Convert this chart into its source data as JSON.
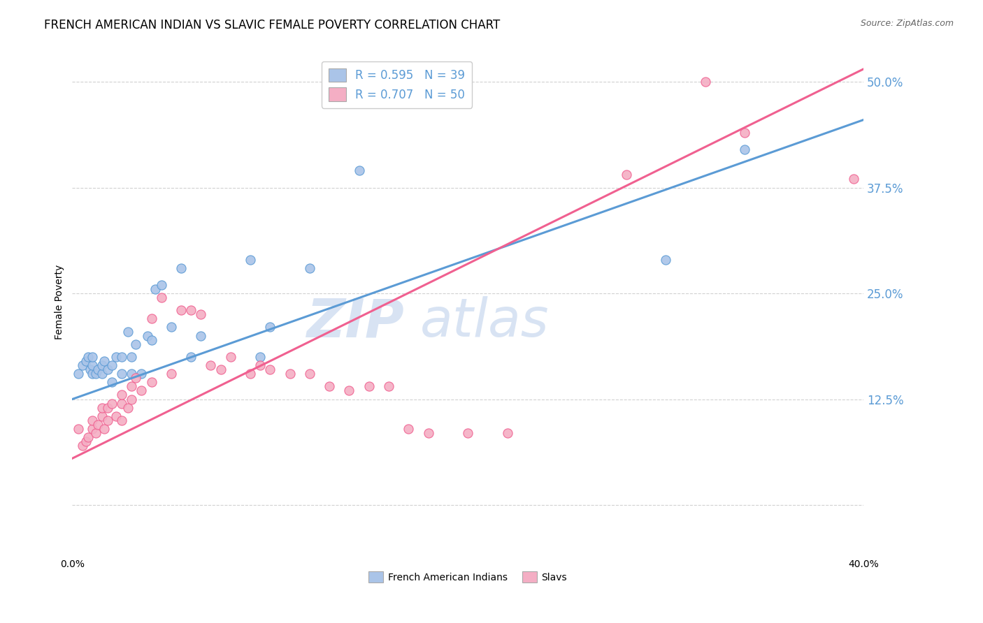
{
  "title": "FRENCH AMERICAN INDIAN VS SLAVIC FEMALE POVERTY CORRELATION CHART",
  "source": "Source: ZipAtlas.com",
  "ylabel": "Female Poverty",
  "yticks": [
    0.0,
    0.125,
    0.25,
    0.375,
    0.5
  ],
  "ytick_labels": [
    "",
    "12.5%",
    "25.0%",
    "37.5%",
    "50.0%"
  ],
  "xmin": 0.0,
  "xmax": 0.4,
  "ymin": -0.06,
  "ymax": 0.54,
  "legend_r1": "R = 0.595",
  "legend_n1": "N = 39",
  "legend_r2": "R = 0.707",
  "legend_n2": "N = 50",
  "label1": "French American Indians",
  "label2": "Slavs",
  "color1": "#aac4e8",
  "color2": "#f4aec4",
  "line_color1": "#5b9bd5",
  "line_color2": "#f06090",
  "watermark_zip": "ZIP",
  "watermark_atlas": "atlas",
  "blue_scatter_x": [
    0.003,
    0.005,
    0.007,
    0.008,
    0.009,
    0.01,
    0.01,
    0.01,
    0.012,
    0.013,
    0.015,
    0.015,
    0.016,
    0.018,
    0.02,
    0.02,
    0.022,
    0.025,
    0.025,
    0.028,
    0.03,
    0.03,
    0.032,
    0.035,
    0.038,
    0.04,
    0.042,
    0.045,
    0.05,
    0.055,
    0.06,
    0.065,
    0.09,
    0.095,
    0.1,
    0.12,
    0.145,
    0.3,
    0.34
  ],
  "blue_scatter_y": [
    0.155,
    0.165,
    0.17,
    0.175,
    0.16,
    0.155,
    0.165,
    0.175,
    0.155,
    0.16,
    0.155,
    0.165,
    0.17,
    0.16,
    0.145,
    0.165,
    0.175,
    0.155,
    0.175,
    0.205,
    0.155,
    0.175,
    0.19,
    0.155,
    0.2,
    0.195,
    0.255,
    0.26,
    0.21,
    0.28,
    0.175,
    0.2,
    0.29,
    0.175,
    0.21,
    0.28,
    0.395,
    0.29,
    0.42
  ],
  "pink_scatter_x": [
    0.003,
    0.005,
    0.007,
    0.008,
    0.01,
    0.01,
    0.012,
    0.013,
    0.015,
    0.015,
    0.016,
    0.018,
    0.018,
    0.02,
    0.022,
    0.025,
    0.025,
    0.025,
    0.028,
    0.03,
    0.03,
    0.032,
    0.035,
    0.04,
    0.04,
    0.045,
    0.05,
    0.055,
    0.06,
    0.065,
    0.07,
    0.075,
    0.08,
    0.09,
    0.095,
    0.1,
    0.11,
    0.12,
    0.13,
    0.14,
    0.15,
    0.16,
    0.17,
    0.18,
    0.2,
    0.22,
    0.28,
    0.32,
    0.34,
    0.395
  ],
  "pink_scatter_y": [
    0.09,
    0.07,
    0.075,
    0.08,
    0.09,
    0.1,
    0.085,
    0.095,
    0.105,
    0.115,
    0.09,
    0.1,
    0.115,
    0.12,
    0.105,
    0.1,
    0.12,
    0.13,
    0.115,
    0.125,
    0.14,
    0.15,
    0.135,
    0.145,
    0.22,
    0.245,
    0.155,
    0.23,
    0.23,
    0.225,
    0.165,
    0.16,
    0.175,
    0.155,
    0.165,
    0.16,
    0.155,
    0.155,
    0.14,
    0.135,
    0.14,
    0.14,
    0.09,
    0.085,
    0.085,
    0.085,
    0.39,
    0.5,
    0.44,
    0.385
  ],
  "blue_line_x": [
    0.0,
    0.4
  ],
  "blue_line_y": [
    0.125,
    0.455
  ],
  "pink_line_x": [
    0.0,
    0.4
  ],
  "pink_line_y": [
    0.055,
    0.515
  ],
  "background_color": "#ffffff",
  "grid_color": "#cccccc",
  "title_fontsize": 12,
  "source_fontsize": 9,
  "axis_label_fontsize": 10,
  "tick_fontsize": 10
}
